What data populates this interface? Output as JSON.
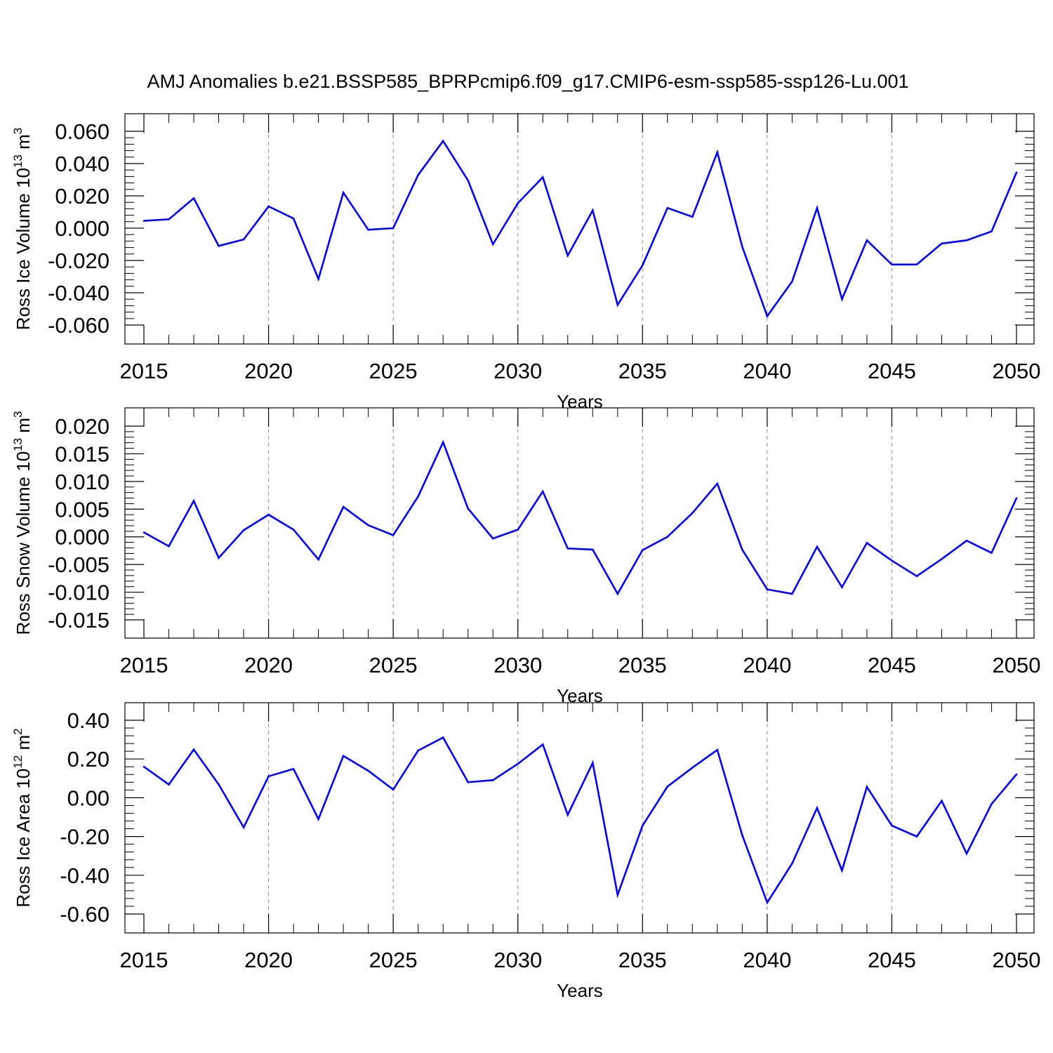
{
  "title": "AMJ Anomalies b.e21.BSSP585_BPRPcmip6.f09_g17.CMIP6-esm-ssp585-ssp126-Lu.001",
  "chart_data": [
    {
      "type": "line",
      "ylabel": "Ross Ice Volume 10",
      "ylabel_sup1": "13",
      "ylabel_unit": " m",
      "ylabel_sup2": "3",
      "xlabel": "Years",
      "xlim": [
        2015,
        2050
      ],
      "ylim": [
        -0.06,
        0.06
      ],
      "yticks": [
        "0.060",
        "0.040",
        "0.020",
        "0.000",
        "-0.020",
        "-0.040",
        "-0.060"
      ],
      "ytick_values": [
        0.06,
        0.04,
        0.02,
        0.0,
        -0.02,
        -0.04,
        -0.06
      ],
      "xticks": [
        "2015",
        "2020",
        "2025",
        "2030",
        "2035",
        "2040",
        "2045",
        "2050"
      ],
      "line_color": "#0000ff",
      "x": [
        2015,
        2016,
        2017,
        2018,
        2019,
        2020,
        2021,
        2022,
        2023,
        2024,
        2025,
        2026,
        2027,
        2028,
        2029,
        2030,
        2031,
        2032,
        2033,
        2034,
        2035,
        2036,
        2037,
        2038,
        2039,
        2040,
        2041,
        2042,
        2043,
        2044,
        2045,
        2046,
        2047,
        2048,
        2049,
        2050
      ],
      "values": [
        0.0045,
        0.0055,
        0.0185,
        -0.011,
        -0.007,
        0.0135,
        0.006,
        -0.0315,
        0.022,
        -0.001,
        0.0,
        0.033,
        0.054,
        0.0295,
        -0.01,
        0.0155,
        0.0315,
        -0.017,
        0.011,
        -0.0475,
        -0.023,
        0.0125,
        0.007,
        0.047,
        -0.0115,
        -0.0545,
        -0.033,
        0.0125,
        -0.044,
        -0.0075,
        -0.0225,
        -0.0225,
        -0.0095,
        -0.0075,
        -0.002,
        0.0345
      ]
    },
    {
      "type": "line",
      "ylabel": "Ross Snow Volume 10",
      "ylabel_sup1": "13",
      "ylabel_unit": " m",
      "ylabel_sup2": "3",
      "xlabel": "Years",
      "xlim": [
        2015,
        2050
      ],
      "ylim": [
        -0.015,
        0.02
      ],
      "yticks": [
        "0.020",
        "0.015",
        "0.010",
        "0.005",
        "0.000",
        "-0.005",
        "-0.010",
        "-0.015"
      ],
      "ytick_values": [
        0.02,
        0.015,
        0.01,
        0.005,
        0.0,
        -0.005,
        -0.01,
        -0.015
      ],
      "xticks": [
        "2015",
        "2020",
        "2025",
        "2030",
        "2035",
        "2040",
        "2045",
        "2050"
      ],
      "line_color": "#0000ff",
      "x": [
        2015,
        2016,
        2017,
        2018,
        2019,
        2020,
        2021,
        2022,
        2023,
        2024,
        2025,
        2026,
        2027,
        2028,
        2029,
        2030,
        2031,
        2032,
        2033,
        2034,
        2035,
        2036,
        2037,
        2038,
        2039,
        2040,
        2041,
        2042,
        2043,
        2044,
        2045,
        2046,
        2047,
        2048,
        2049,
        2050
      ],
      "values": [
        0.0008,
        -0.0017,
        0.0065,
        -0.0038,
        0.0012,
        0.004,
        0.0013,
        -0.0041,
        0.0054,
        0.0021,
        0.0003,
        0.0073,
        0.0171,
        0.0051,
        -0.0003,
        0.0013,
        0.0082,
        -0.0021,
        -0.0023,
        -0.0103,
        -0.0024,
        0.0,
        0.0043,
        0.0096,
        -0.0023,
        -0.0095,
        -0.0103,
        -0.0018,
        -0.0091,
        -0.0011,
        -0.0043,
        -0.0071,
        -0.004,
        -0.0007,
        -0.0029,
        0.007
      ]
    },
    {
      "type": "line",
      "ylabel": "Ross Ice Area 10",
      "ylabel_sup1": "12",
      "ylabel_unit": " m",
      "ylabel_sup2": "2",
      "xlabel": "Years",
      "xlim": [
        2015,
        2050
      ],
      "ylim": [
        -0.6,
        0.4
      ],
      "yticks": [
        "0.40",
        "0.20",
        "0.00",
        "-0.20",
        "-0.40",
        "-0.60"
      ],
      "ytick_values": [
        0.4,
        0.2,
        0.0,
        -0.2,
        -0.4,
        -0.6
      ],
      "xticks": [
        "2015",
        "2020",
        "2025",
        "2030",
        "2035",
        "2040",
        "2045",
        "2050"
      ],
      "line_color": "#0000ff",
      "x": [
        2015,
        2016,
        2017,
        2018,
        2019,
        2020,
        2021,
        2022,
        2023,
        2024,
        2025,
        2026,
        2027,
        2028,
        2029,
        2030,
        2031,
        2032,
        2033,
        2034,
        2035,
        2036,
        2037,
        2038,
        2039,
        2040,
        2041,
        2042,
        2043,
        2044,
        2045,
        2046,
        2047,
        2048,
        2049,
        2050
      ],
      "values": [
        0.16,
        0.068,
        0.249,
        0.069,
        -0.153,
        0.111,
        0.149,
        -0.11,
        0.216,
        0.139,
        0.042,
        0.244,
        0.311,
        0.08,
        0.091,
        0.175,
        0.275,
        -0.088,
        0.18,
        -0.501,
        -0.144,
        0.058,
        0.155,
        0.247,
        -0.193,
        -0.541,
        -0.339,
        -0.053,
        -0.375,
        0.056,
        -0.144,
        -0.2,
        -0.016,
        -0.288,
        -0.032,
        0.121
      ]
    }
  ]
}
